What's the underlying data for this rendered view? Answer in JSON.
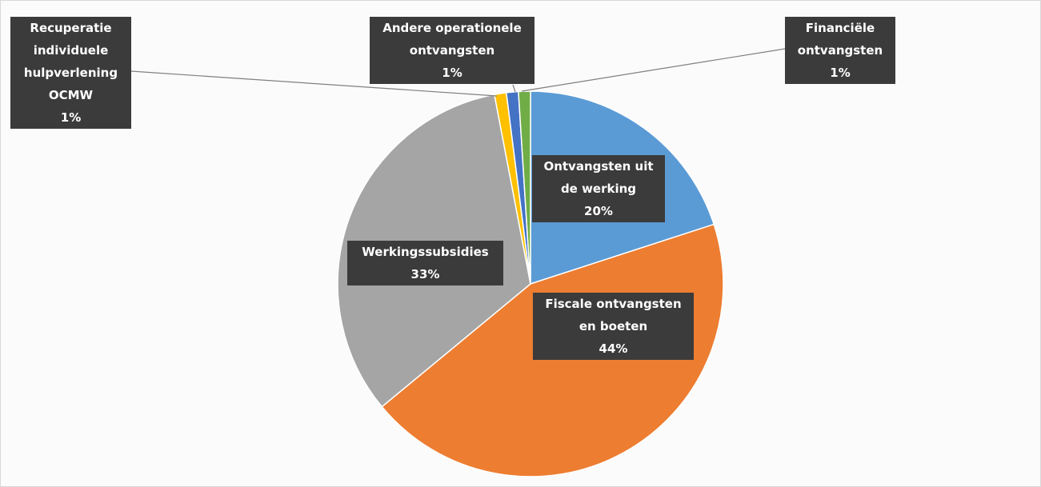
{
  "chart_data": {
    "type": "pie",
    "categories": [
      "Ontvangsten uit de werking",
      "Fiscale ontvangsten en boeten",
      "Werkingssubsidies",
      "Recuperatie individuele hulpverlening OCMW",
      "Andere operationele ontvangsten",
      "Financiële ontvangsten"
    ],
    "values": [
      20,
      44,
      33,
      1,
      1,
      1
    ],
    "value_labels": [
      "20%",
      "44%",
      "33%",
      "1%",
      "1%",
      "1%"
    ],
    "colors": [
      "#5b9bd5",
      "#ed7d31",
      "#a5a5a5",
      "#ffc000",
      "#4472c4",
      "#70ad47"
    ]
  }
}
